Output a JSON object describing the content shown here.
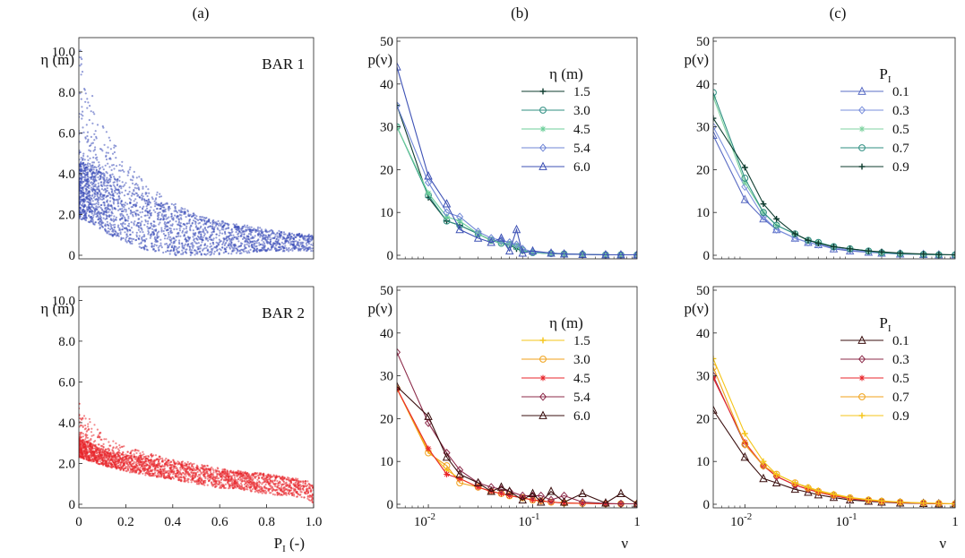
{
  "figure": {
    "panel_labels": [
      "(a)",
      "(b)",
      "(c)"
    ]
  },
  "chart_data": [
    {
      "id": "a1",
      "type": "scatter",
      "panel": "(a)",
      "annotation": "BAR 1",
      "ylabel": "η (m)",
      "xlabel": "",
      "xlim": [
        0,
        1
      ],
      "ylim": [
        0,
        10.5
      ],
      "yticks": [
        "0",
        "2.0",
        "4.0",
        "6.0",
        "8.0",
        "10.0"
      ],
      "ytick_values": [
        0,
        2,
        4,
        6,
        8,
        10
      ],
      "xticks": [],
      "xtick_values": [],
      "color": "#3b4db8",
      "envelope": {
        "x": [
          0,
          0.05,
          0.1,
          0.2,
          0.3,
          0.4,
          0.5,
          0.6,
          0.7,
          0.8,
          0.9,
          1.0
        ],
        "upper": [
          10.4,
          8.2,
          6.5,
          4.6,
          3.4,
          2.6,
          2.0,
          1.7,
          1.5,
          1.3,
          1.1,
          1.0
        ],
        "core_upper": [
          4.5,
          4.4,
          4.0,
          3.2,
          2.6,
          2.2,
          1.8,
          1.5,
          1.3,
          1.1,
          1.0,
          0.9
        ],
        "lower": [
          1.8,
          1.6,
          1.2,
          0.6,
          0.2,
          0.0,
          0.0,
          0.0,
          0.1,
          0.2,
          0.2,
          0.2
        ]
      }
    },
    {
      "id": "b1",
      "type": "line",
      "panel": "(b)",
      "ylabel": "p(ν)",
      "xlabel": "",
      "xscale": "log",
      "xlim": [
        0.005,
        1
      ],
      "ylim": [
        0,
        50
      ],
      "yticks": [
        "0",
        "10",
        "20",
        "30",
        "40",
        "50"
      ],
      "ytick_values": [
        0,
        10,
        20,
        30,
        40,
        50
      ],
      "xticks": [],
      "xtick_values": [],
      "legend_title": "η (m)",
      "x": [
        0.005,
        0.01,
        0.015,
        0.02,
        0.03,
        0.04,
        0.05,
        0.06,
        0.07,
        0.08,
        0.1,
        0.15,
        0.2,
        0.3,
        0.5,
        0.7,
        1.0
      ],
      "series": [
        {
          "name": "1.5",
          "color": "#0d3b2e",
          "marker": "plus",
          "values": [
            35,
            13.5,
            8,
            7,
            5,
            3.5,
            3,
            2.5,
            1.5,
            1,
            0.6,
            0.4,
            0.3,
            0.2,
            0.1,
            0.1,
            0.1
          ]
        },
        {
          "name": "3.0",
          "color": "#2f8f82",
          "marker": "circle",
          "values": [
            30,
            14,
            8,
            7,
            5,
            3.5,
            2.8,
            2.5,
            2,
            1.2,
            0.6,
            0.4,
            0.3,
            0.2,
            0.1,
            0.1,
            0.1
          ]
        },
        {
          "name": "4.5",
          "color": "#6ccf9a",
          "marker": "star",
          "values": [
            30,
            14.5,
            9,
            8,
            5,
            3.5,
            3,
            2.6,
            2,
            1,
            0.6,
            0.4,
            0.3,
            0.2,
            0.1,
            0.1,
            0.1
          ]
        },
        {
          "name": "5.4",
          "color": "#6f86d6",
          "marker": "diamond",
          "values": [
            35,
            17,
            10,
            9,
            5.5,
            4,
            3.5,
            3,
            2.5,
            1.5,
            0.8,
            0.5,
            0.3,
            0.2,
            0.1,
            0.1,
            0.1
          ]
        },
        {
          "name": "6.0",
          "color": "#3e52b5",
          "marker": "triangle",
          "values": [
            44,
            18.5,
            12,
            6,
            4,
            3,
            4,
            1,
            6,
            0.5,
            1,
            0.5,
            0.3,
            0.2,
            0.1,
            0.1,
            0.1
          ]
        }
      ]
    },
    {
      "id": "c1",
      "type": "line",
      "panel": "(c)",
      "ylabel": "p(ν)",
      "xlabel": "",
      "xscale": "log",
      "xlim": [
        0.005,
        1
      ],
      "ylim": [
        0,
        50
      ],
      "yticks": [
        "0",
        "10",
        "20",
        "30",
        "40",
        "50"
      ],
      "ytick_values": [
        0,
        10,
        20,
        30,
        40,
        50
      ],
      "xticks": [],
      "xtick_values": [],
      "legend_title": "P",
      "legend_title_sub": "I",
      "x": [
        0.005,
        0.01,
        0.015,
        0.02,
        0.03,
        0.04,
        0.05,
        0.07,
        0.1,
        0.15,
        0.2,
        0.3,
        0.5,
        0.7,
        1.0
      ],
      "series": [
        {
          "name": "0.1",
          "color": "#5a6cc4",
          "marker": "triangle",
          "values": [
            28,
            13,
            8.5,
            6,
            4,
            3,
            2.5,
            1.5,
            1,
            0.7,
            0.5,
            0.3,
            0.2,
            0.1,
            0.1
          ]
        },
        {
          "name": "0.3",
          "color": "#7a8fdc",
          "marker": "diamond",
          "values": [
            30,
            16,
            9,
            6,
            4,
            3,
            2.5,
            1.8,
            1.2,
            0.8,
            0.5,
            0.3,
            0.2,
            0.1,
            0.1
          ]
        },
        {
          "name": "0.5",
          "color": "#7fd3a0",
          "marker": "star",
          "values": [
            37,
            17,
            10,
            7,
            5,
            3.5,
            3,
            2,
            1.5,
            1,
            0.6,
            0.4,
            0.2,
            0.1,
            0.1
          ]
        },
        {
          "name": "0.7",
          "color": "#2f8f82",
          "marker": "circle",
          "values": [
            38,
            18,
            10,
            7,
            5,
            3.5,
            3,
            2,
            1.5,
            1,
            0.6,
            0.4,
            0.2,
            0.1,
            0.1
          ]
        },
        {
          "name": "0.9",
          "color": "#0d3b2e",
          "marker": "plus",
          "values": [
            32,
            20.5,
            12,
            8.5,
            5,
            3.5,
            2.8,
            2,
            1.5,
            1,
            0.8,
            0.5,
            0.3,
            0.2,
            0.1
          ]
        }
      ]
    },
    {
      "id": "a2",
      "type": "scatter",
      "panel": "(a)",
      "annotation": "BAR 2",
      "ylabel": "η (m)",
      "xlabel": "P",
      "xlabel_sub": "I",
      "xlabel_suffix": " (-)",
      "xlim": [
        0,
        1
      ],
      "ylim": [
        0,
        10.5
      ],
      "yticks": [
        "0",
        "2.0",
        "4.0",
        "6.0",
        "8.0",
        "10.0"
      ],
      "ytick_values": [
        0,
        2,
        4,
        6,
        8,
        10
      ],
      "xticks": [
        "0",
        "0.2",
        "0.4",
        "0.6",
        "0.8",
        "1.0"
      ],
      "xtick_values": [
        0,
        0.2,
        0.4,
        0.6,
        0.8,
        1.0
      ],
      "color": "#e8262b",
      "envelope": {
        "x": [
          0,
          0.05,
          0.1,
          0.2,
          0.3,
          0.4,
          0.5,
          0.6,
          0.7,
          0.8,
          0.9,
          0.97,
          1.0
        ],
        "upper": [
          5.0,
          4.2,
          3.4,
          2.8,
          2.5,
          2.2,
          2.0,
          1.8,
          1.6,
          1.5,
          1.3,
          1.2,
          0.9
        ],
        "core_upper": [
          3.2,
          3.0,
          2.6,
          2.4,
          2.2,
          2.0,
          1.8,
          1.6,
          1.5,
          1.4,
          1.2,
          1.1,
          0.8
        ],
        "lower": [
          2.3,
          2.1,
          1.9,
          1.6,
          1.4,
          1.2,
          1.0,
          0.8,
          0.7,
          0.5,
          0.4,
          0.3,
          0.0
        ]
      }
    },
    {
      "id": "b2",
      "type": "line",
      "panel": "(b)",
      "ylabel": "p(ν)",
      "xlabel": "ν",
      "xscale": "log",
      "xlim": [
        0.005,
        1
      ],
      "ylim": [
        0,
        50
      ],
      "yticks": [
        "0",
        "10",
        "20",
        "30",
        "40",
        "50"
      ],
      "ytick_values": [
        0,
        10,
        20,
        30,
        40,
        50
      ],
      "xticks": [
        "10",
        "10",
        "1"
      ],
      "xtick_exponents": [
        "-2",
        "-1",
        ""
      ],
      "xtick_values": [
        0.01,
        0.1,
        1
      ],
      "legend_title": "η (m)",
      "x": [
        0.005,
        0.01,
        0.015,
        0.02,
        0.03,
        0.04,
        0.05,
        0.06,
        0.08,
        0.1,
        0.12,
        0.15,
        0.2,
        0.3,
        0.5,
        0.7,
        1.0
      ],
      "series": [
        {
          "name": "1.5",
          "color": "#f5c518",
          "marker": "plus",
          "values": [
            27,
            12.5,
            8,
            6,
            4,
            3,
            2.5,
            2,
            1.5,
            1,
            0.8,
            0.5,
            0.3,
            0.2,
            0.1,
            0.1,
            0.1
          ]
        },
        {
          "name": "3.0",
          "color": "#f0a21a",
          "marker": "circle",
          "values": [
            27,
            12,
            9,
            5,
            4,
            3,
            2.5,
            2,
            1.5,
            1,
            0.8,
            0.5,
            0.3,
            0.2,
            0.1,
            0.1,
            0.1
          ]
        },
        {
          "name": "4.5",
          "color": "#e8262b",
          "marker": "star",
          "values": [
            27,
            13,
            7,
            6,
            4,
            3,
            2.5,
            2,
            1.5,
            1,
            0.8,
            0.5,
            0.3,
            0.2,
            0.1,
            0.1,
            0.1
          ]
        },
        {
          "name": "5.4",
          "color": "#8c2b4a",
          "marker": "diamond",
          "values": [
            35.5,
            19,
            12,
            8,
            5,
            4,
            3.5,
            3,
            2,
            2,
            2,
            1,
            2,
            0.5,
            0.2,
            0.1,
            0.1
          ]
        },
        {
          "name": "6.0",
          "color": "#3a0f0f",
          "marker": "triangle",
          "values": [
            27.5,
            20.5,
            11,
            7,
            5,
            3,
            4,
            3,
            1,
            2.5,
            0.5,
            3,
            0.5,
            2.5,
            0.3,
            2.5,
            0.1
          ]
        }
      ]
    },
    {
      "id": "c2",
      "type": "line",
      "panel": "(c)",
      "ylabel": "p(ν)",
      "xlabel": "ν",
      "xscale": "log",
      "xlim": [
        0.005,
        1
      ],
      "ylim": [
        0,
        50
      ],
      "yticks": [
        "0",
        "10",
        "20",
        "30",
        "40",
        "50"
      ],
      "ytick_values": [
        0,
        10,
        20,
        30,
        40,
        50
      ],
      "xticks": [
        "10",
        "10",
        "1"
      ],
      "xtick_exponents": [
        "-2",
        "-1",
        ""
      ],
      "xtick_values": [
        0.01,
        0.1,
        1
      ],
      "legend_title": "P",
      "legend_title_sub": "I",
      "x": [
        0.005,
        0.01,
        0.015,
        0.02,
        0.03,
        0.04,
        0.05,
        0.07,
        0.1,
        0.15,
        0.2,
        0.3,
        0.5,
        0.7,
        1.0
      ],
      "series": [
        {
          "name": "0.1",
          "color": "#3a0f0f",
          "marker": "triangle",
          "values": [
            22,
            11,
            6,
            5,
            3.5,
            2.8,
            2.2,
            1.6,
            1,
            0.7,
            0.5,
            0.3,
            0.2,
            0.1,
            0.1
          ]
        },
        {
          "name": "0.3",
          "color": "#8c2b4a",
          "marker": "diamond",
          "values": [
            30,
            14,
            9,
            6.5,
            4.5,
            3.5,
            2.8,
            2,
            1.3,
            0.9,
            0.6,
            0.4,
            0.2,
            0.1,
            0.1
          ]
        },
        {
          "name": "0.5",
          "color": "#e8262b",
          "marker": "star",
          "values": [
            29.5,
            14.5,
            9,
            6.5,
            4.5,
            3.5,
            2.8,
            2,
            1.3,
            0.9,
            0.6,
            0.4,
            0.2,
            0.1,
            0.1
          ]
        },
        {
          "name": "0.7",
          "color": "#f0a21a",
          "marker": "circle",
          "values": [
            32,
            14,
            9,
            7,
            5,
            3.8,
            3,
            2.2,
            1.5,
            1,
            0.7,
            0.5,
            0.3,
            0.2,
            0.1
          ]
        },
        {
          "name": "0.9",
          "color": "#f5c518",
          "marker": "plus",
          "values": [
            34,
            16.5,
            10,
            7,
            5,
            4,
            3.2,
            2.4,
            1.6,
            1.1,
            0.8,
            0.5,
            0.3,
            0.2,
            0.1
          ]
        }
      ]
    }
  ]
}
